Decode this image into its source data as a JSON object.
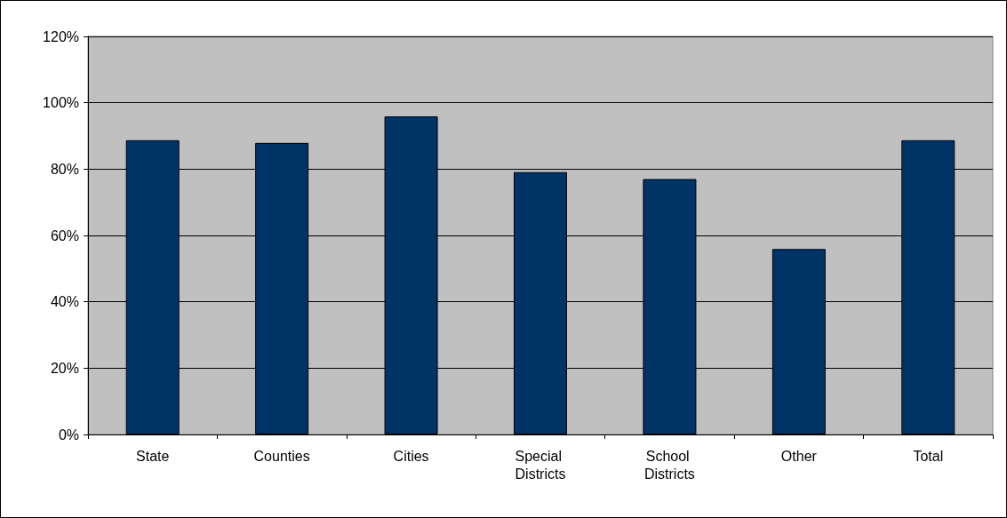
{
  "chart_data": {
    "type": "bar",
    "categories": [
      "State",
      "Counties",
      "Cities",
      "Special Districts",
      "School Districts",
      "Other",
      "Total"
    ],
    "values": [
      88.7,
      87.9,
      95.9,
      79.1,
      77.0,
      55.9,
      88.7
    ],
    "color": "#003366",
    "ylim": [
      0,
      120
    ],
    "yticks": [
      {
        "value": 0,
        "label": "0%"
      },
      {
        "value": 20,
        "label": "20%"
      },
      {
        "value": 40,
        "label": "40%"
      },
      {
        "value": 60,
        "label": "60%"
      },
      {
        "value": 80,
        "label": "80%"
      },
      {
        "value": 100,
        "label": "100%"
      },
      {
        "value": 120,
        "label": "120%"
      }
    ],
    "grid": "y"
  }
}
